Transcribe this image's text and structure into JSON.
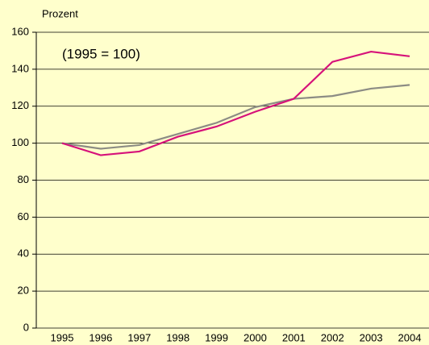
{
  "chart_data": {
    "type": "line",
    "y_label": "Prozent",
    "annotation": "(1995 = 100)",
    "categories": [
      "1995",
      "1996",
      "1997",
      "1998",
      "1999",
      "2000",
      "2001",
      "2002",
      "2003",
      "2004"
    ],
    "series": [
      {
        "color": "#8c8c84",
        "values": [
          100,
          97,
          99,
          105,
          111,
          119.5,
          124,
          125.5,
          129.5,
          131.5
        ]
      },
      {
        "color": "#d6127a",
        "values": [
          100,
          93.5,
          95.5,
          103.5,
          109,
          117,
          124,
          144,
          149.5,
          147
        ]
      }
    ],
    "ylim": [
      0,
      160
    ],
    "yticks": [
      0,
      20,
      40,
      60,
      80,
      100,
      120,
      140,
      160
    ],
    "grid": true
  }
}
